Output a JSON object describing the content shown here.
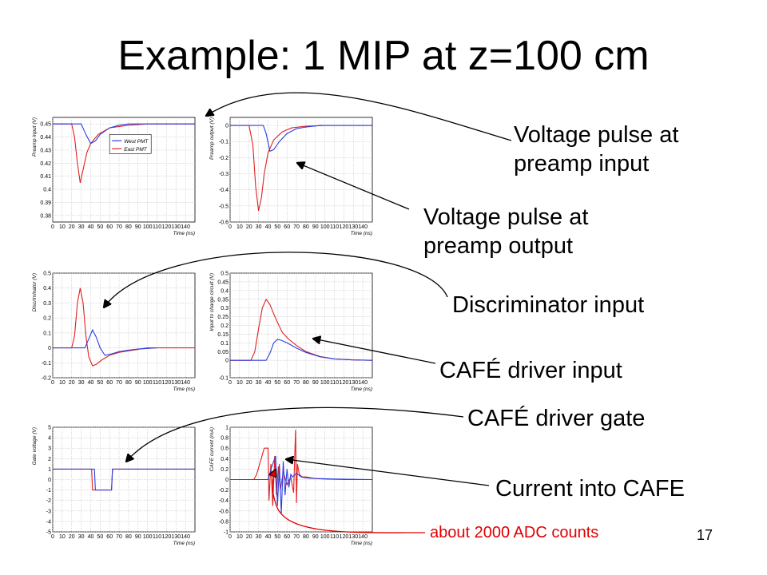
{
  "title": "Example: 1 MIP at z=100 cm",
  "page_number": "17",
  "labels": {
    "preamp_input": [
      "Voltage pulse at",
      "preamp input"
    ],
    "preamp_output": [
      "Voltage pulse at",
      "preamp output"
    ],
    "discriminator": "Discriminator input",
    "cafe_input": "CAFÉ driver input",
    "cafe_gate": "CAFÉ driver gate",
    "cafe_current": "Current into CAFE",
    "adc_note": "about 2000 ADC counts"
  },
  "colors": {
    "west": "#2b3fe0",
    "east": "#e02020",
    "annotation": "#e00000",
    "grid": "#b8b8b8"
  },
  "chart_data": [
    {
      "type": "line",
      "ylabel": "Preamp input (V)",
      "xlabel": "Time (ns)",
      "xlim": [
        0,
        150
      ],
      "ylim": [
        0.375,
        0.455
      ],
      "xticks": [
        0,
        10,
        20,
        30,
        40,
        50,
        60,
        70,
        80,
        90,
        100,
        110,
        120,
        130,
        140
      ],
      "yticks": [
        0.38,
        0.39,
        0.4,
        0.41,
        0.42,
        0.43,
        0.44,
        0.45
      ],
      "ytick_labels": [
        "0.38",
        "0.39",
        "0.4",
        "0.41",
        "0.42",
        "0.43",
        "0.44",
        "0.45"
      ],
      "legend": [
        "West PMT",
        "East PMT"
      ],
      "series": [
        {
          "name": "West PMT",
          "color": "west",
          "x": [
            0,
            30,
            35,
            40,
            45,
            50,
            60,
            70,
            80,
            100,
            150
          ],
          "y": [
            0.45,
            0.45,
            0.442,
            0.435,
            0.437,
            0.442,
            0.447,
            0.449,
            0.45,
            0.45,
            0.45
          ]
        },
        {
          "name": "East PMT",
          "color": "east",
          "x": [
            0,
            20,
            23,
            26,
            29,
            32,
            36,
            40,
            48,
            60,
            80,
            100,
            150
          ],
          "y": [
            0.45,
            0.45,
            0.44,
            0.42,
            0.405,
            0.415,
            0.428,
            0.435,
            0.442,
            0.447,
            0.449,
            0.45,
            0.45
          ]
        }
      ]
    },
    {
      "type": "line",
      "ylabel": "Preamp output (V)",
      "xlabel": "Time (ns)",
      "xlim": [
        0,
        150
      ],
      "ylim": [
        -0.6,
        0.05
      ],
      "xticks": [
        0,
        10,
        20,
        30,
        40,
        50,
        60,
        70,
        80,
        90,
        100,
        110,
        120,
        130,
        140
      ],
      "yticks": [
        -0.6,
        -0.5,
        -0.4,
        -0.3,
        -0.2,
        -0.1,
        0
      ],
      "ytick_labels": [
        "-0.6",
        "-0.5",
        "-0.4",
        "-0.3",
        "-0.2",
        "-0.1",
        "0"
      ],
      "series": [
        {
          "name": "West PMT",
          "color": "west",
          "x": [
            0,
            35,
            38,
            42,
            46,
            52,
            60,
            70,
            80,
            95,
            150
          ],
          "y": [
            0,
            0,
            -0.05,
            -0.16,
            -0.15,
            -0.1,
            -0.05,
            -0.02,
            -0.01,
            0,
            0
          ]
        },
        {
          "name": "East PMT",
          "color": "east",
          "x": [
            0,
            20,
            24,
            27,
            30,
            33,
            36,
            40,
            46,
            55,
            65,
            80,
            100,
            150
          ],
          "y": [
            0,
            0,
            -0.12,
            -0.38,
            -0.53,
            -0.45,
            -0.3,
            -0.17,
            -0.09,
            -0.04,
            -0.015,
            -0.005,
            0,
            0
          ]
        }
      ]
    },
    {
      "type": "line",
      "ylabel": "Discriminator (V)",
      "xlabel": "Time (ns)",
      "xlim": [
        0,
        150
      ],
      "ylim": [
        -0.2,
        0.5
      ],
      "xticks": [
        0,
        10,
        20,
        30,
        40,
        50,
        60,
        70,
        80,
        90,
        100,
        110,
        120,
        130,
        140
      ],
      "yticks": [
        -0.2,
        -0.1,
        0,
        0.1,
        0.2,
        0.3,
        0.4,
        0.5
      ],
      "ytick_labels": [
        "-0.2",
        "-0.1",
        "0",
        "0.1",
        "0.2",
        "0.3",
        "0.4",
        "0.5"
      ],
      "series": [
        {
          "name": "West PMT",
          "color": "west",
          "x": [
            0,
            34,
            38,
            42,
            46,
            50,
            55,
            62,
            70,
            80,
            90,
            100,
            110
          ],
          "y": [
            0,
            0,
            0.06,
            0.12,
            0.07,
            0.0,
            -0.05,
            -0.04,
            -0.025,
            -0.015,
            -0.008,
            -0.004,
            0
          ]
        },
        {
          "name": "East PMT",
          "color": "east",
          "x": [
            0,
            20,
            23,
            26,
            29,
            32,
            35,
            38,
            42,
            46,
            52,
            60,
            70,
            80,
            90,
            100,
            110,
            150
          ],
          "y": [
            0,
            0,
            0.08,
            0.3,
            0.4,
            0.3,
            0.08,
            -0.06,
            -0.12,
            -0.11,
            -0.08,
            -0.05,
            -0.03,
            -0.02,
            -0.01,
            0,
            0,
            0
          ]
        }
      ]
    },
    {
      "type": "line",
      "ylabel": "Input to charge circuit (V)",
      "xlabel": "Time (ns)",
      "xlim": [
        0,
        150
      ],
      "ylim": [
        -0.1,
        0.5
      ],
      "xticks": [
        0,
        10,
        20,
        30,
        40,
        50,
        60,
        70,
        80,
        90,
        100,
        110,
        120,
        130,
        140
      ],
      "yticks": [
        -0.1,
        0,
        0.05,
        0.1,
        0.15,
        0.2,
        0.25,
        0.3,
        0.35,
        0.4,
        0.45,
        0.5
      ],
      "ytick_labels": [
        "-0.1",
        "0",
        "0.05",
        "0.1",
        "0.15",
        "0.2",
        "0.25",
        "0.3",
        "0.35",
        "0.4",
        "0.45",
        "0.5"
      ],
      "series": [
        {
          "name": "West PMT",
          "color": "west",
          "x": [
            0,
            38,
            42,
            46,
            50,
            54,
            60,
            70,
            80,
            95,
            110,
            130,
            150
          ],
          "y": [
            0,
            0,
            0.04,
            0.1,
            0.12,
            0.115,
            0.1,
            0.07,
            0.045,
            0.02,
            0.008,
            0.002,
            0
          ]
        },
        {
          "name": "East PMT",
          "color": "east",
          "x": [
            0,
            22,
            26,
            30,
            34,
            38,
            42,
            48,
            55,
            62,
            70,
            80,
            95,
            110,
            130,
            150
          ],
          "y": [
            0,
            0,
            0.05,
            0.18,
            0.3,
            0.35,
            0.32,
            0.24,
            0.16,
            0.12,
            0.085,
            0.05,
            0.022,
            0.008,
            0.002,
            0
          ]
        }
      ]
    },
    {
      "type": "line",
      "ylabel": "Gate voltage (V)",
      "xlabel": "Time (ns)",
      "xlim": [
        0,
        150
      ],
      "ylim": [
        -5,
        5
      ],
      "xticks": [
        0,
        10,
        20,
        30,
        40,
        50,
        60,
        70,
        80,
        90,
        100,
        110,
        120,
        130,
        140
      ],
      "yticks": [
        -5,
        -4,
        -3,
        -2,
        -1,
        0,
        1,
        2,
        3,
        4,
        5
      ],
      "ytick_labels": [
        "-5",
        "-4",
        "-3",
        "-2",
        "-1",
        "0",
        "1",
        "2",
        "3",
        "4",
        "5"
      ],
      "series": [
        {
          "name": "West PMT",
          "color": "west",
          "x": [
            0,
            44,
            45,
            62,
            63,
            150
          ],
          "y": [
            1,
            1,
            -1,
            -1,
            1,
            1
          ]
        },
        {
          "name": "East PMT",
          "color": "east",
          "x": [
            0,
            41,
            42,
            58,
            59,
            62,
            63,
            150
          ],
          "y": [
            1,
            1,
            -1,
            -1,
            -1,
            -1,
            1,
            1
          ]
        }
      ]
    },
    {
      "type": "line",
      "ylabel": "CAFE current (mA)",
      "xlabel": "Time (ns)",
      "xlim": [
        0,
        150
      ],
      "ylim": [
        -1,
        1
      ],
      "xticks": [
        0,
        10,
        20,
        30,
        40,
        50,
        60,
        70,
        80,
        90,
        100,
        110,
        120,
        130,
        140
      ],
      "yticks": [
        -1,
        -0.8,
        -0.6,
        -0.4,
        -0.2,
        0,
        0.2,
        0.4,
        0.6,
        0.8,
        1
      ],
      "ytick_labels": [
        "-1",
        "-0.8",
        "-0.6",
        "-0.4",
        "-0.2",
        "0",
        "0.2",
        "0.4",
        "0.6",
        "0.8",
        "1"
      ],
      "series": [
        {
          "name": "West PMT",
          "color": "west",
          "x": [
            0,
            40,
            44,
            48,
            50,
            52,
            54,
            56,
            58,
            60,
            62,
            64,
            66,
            70,
            75,
            80,
            90,
            110,
            150
          ],
          "y": [
            0,
            0,
            0.25,
            0.45,
            -0.5,
            0.3,
            -0.65,
            0.35,
            -0.3,
            0.2,
            -0.15,
            0.1,
            0.05,
            0.12,
            0.05,
            0.03,
            0.02,
            0.01,
            0
          ]
        },
        {
          "name": "East PMT",
          "color": "east",
          "x": [
            0,
            25,
            28,
            32,
            36,
            40,
            41,
            43,
            45,
            47,
            49,
            51,
            53,
            56,
            60,
            64,
            67,
            69,
            70,
            71,
            73,
            76,
            80,
            90,
            100,
            120,
            150
          ],
          "y": [
            0,
            0,
            0.1,
            0.35,
            0.6,
            0.6,
            -0.4,
            0.3,
            -0.5,
            0.45,
            -0.3,
            0.25,
            -0.2,
            0.15,
            -0.1,
            0.05,
            -0.25,
            0.95,
            -0.45,
            0.3,
            0.1,
            0.05,
            0.05,
            0.02,
            0.01,
            0,
            0
          ]
        }
      ]
    }
  ]
}
